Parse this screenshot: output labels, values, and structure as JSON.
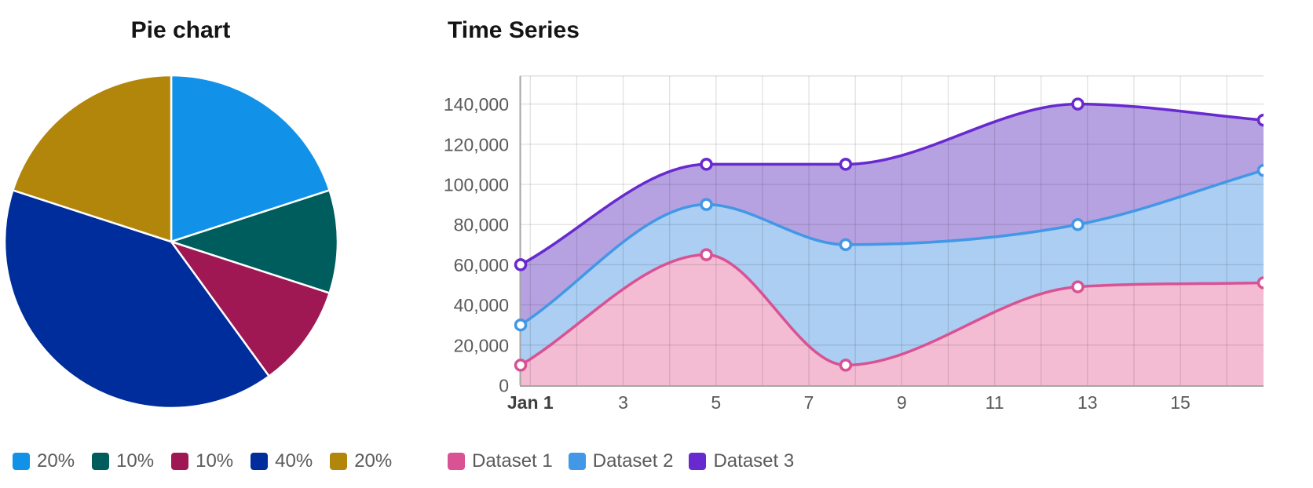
{
  "pie": {
    "title": "Pie chart",
    "legend": [
      {
        "label": "20%",
        "color": "#1192e8"
      },
      {
        "label": "10%",
        "color": "#005d5d"
      },
      {
        "label": "10%",
        "color": "#9f1853"
      },
      {
        "label": "40%",
        "color": "#002d9c"
      },
      {
        "label": "20%",
        "color": "#b2860a"
      }
    ]
  },
  "timeseries": {
    "title": "Time Series",
    "legend": [
      {
        "label": "Dataset 1",
        "color": "#d85294"
      },
      {
        "label": "Dataset 2",
        "color": "#4297e6"
      },
      {
        "label": "Dataset 3",
        "color": "#6829cf"
      }
    ]
  },
  "chart_data": [
    {
      "type": "pie",
      "title": "Pie chart",
      "labels": [
        "20%",
        "10%",
        "10%",
        "40%",
        "20%"
      ],
      "values": [
        20,
        10,
        10,
        40,
        20
      ],
      "colors": [
        "#1192e8",
        "#005d5d",
        "#9f1853",
        "#002d9c",
        "#b2860a"
      ],
      "start_angle_deg": 0,
      "direction": "clockwise",
      "legend_position": "bottom"
    },
    {
      "type": "area",
      "title": "Time Series",
      "x_days": [
        1,
        5,
        8,
        13,
        17
      ],
      "x_range_days": [
        1,
        17
      ],
      "x_tick_days": [
        1,
        3,
        5,
        7,
        9,
        11,
        13,
        15
      ],
      "x_tick_labels": [
        "Jan 1",
        "3",
        "5",
        "7",
        "9",
        "11",
        "13",
        "15"
      ],
      "x_grid_days": [
        1,
        2,
        3,
        4,
        5,
        6,
        7,
        8,
        9,
        10,
        11,
        12,
        13,
        14,
        15,
        16
      ],
      "grid_day_offset": 0.2083,
      "ylim": [
        0,
        154000
      ],
      "y_tick_step": 20000,
      "y_tick_labels": [
        "0",
        "20,000",
        "40,000",
        "60,000",
        "80,000",
        "100,000",
        "120,000",
        "140,000"
      ],
      "grid": true,
      "legend_position": "bottom",
      "series": [
        {
          "name": "Dataset 1",
          "values": [
            10000,
            65000,
            10000,
            49000,
            51000
          ],
          "line_color": "#d85294",
          "fill_color": "#f3bcd3"
        },
        {
          "name": "Dataset 2",
          "values": [
            30000,
            90000,
            70000,
            80000,
            107000
          ],
          "line_color": "#4297e6",
          "fill_color": "#abcef2"
        },
        {
          "name": "Dataset 3",
          "values": [
            60000,
            110000,
            110000,
            140000,
            132000
          ],
          "line_color": "#6829cf",
          "fill_color": "#b6a2e1"
        }
      ]
    }
  ]
}
